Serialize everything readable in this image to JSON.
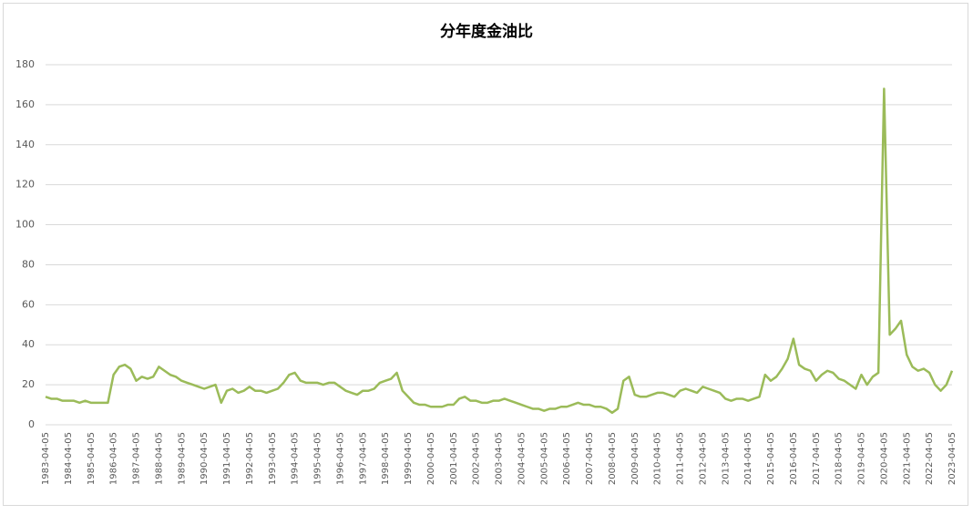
{
  "chart_data": {
    "type": "line",
    "title": "分年度金油比",
    "categories": [
      "1983-04-05",
      null,
      null,
      null,
      "1984-04-05",
      null,
      null,
      null,
      "1985-04-05",
      null,
      null,
      null,
      "1986-04-05",
      null,
      null,
      null,
      "1987-04-05",
      null,
      null,
      null,
      "1988-04-05",
      null,
      null,
      null,
      "1989-04-05",
      null,
      null,
      null,
      "1990-04-05",
      null,
      null,
      null,
      "1991-04-05",
      null,
      null,
      null,
      "1992-04-05",
      null,
      null,
      null,
      "1993-04-05",
      null,
      null,
      null,
      "1994-04-05",
      null,
      null,
      null,
      "1995-04-05",
      null,
      null,
      null,
      "1996-04-05",
      null,
      null,
      null,
      "1997-04-05",
      null,
      null,
      null,
      "1998-04-05",
      null,
      null,
      null,
      "1999-04-05",
      null,
      null,
      null,
      "2000-04-05",
      null,
      null,
      null,
      "2001-04-05",
      null,
      null,
      null,
      "2002-04-05",
      null,
      null,
      null,
      "2003-04-05",
      null,
      null,
      null,
      "2004-04-05",
      null,
      null,
      null,
      "2005-04-05",
      null,
      null,
      null,
      "2006-04-05",
      null,
      null,
      null,
      "2007-04-05",
      null,
      null,
      null,
      "2008-04-05",
      null,
      null,
      null,
      "2009-04-05",
      null,
      null,
      null,
      "2010-04-05",
      null,
      null,
      null,
      "2011-04-05",
      null,
      null,
      null,
      "2012-04-05",
      null,
      null,
      null,
      "2013-04-05",
      null,
      null,
      null,
      "2014-04-05",
      null,
      null,
      null,
      "2015-04-05",
      null,
      null,
      null,
      "2016-04-05",
      null,
      null,
      null,
      "2017-04-05",
      null,
      null,
      null,
      "2018-04-05",
      null,
      null,
      null,
      "2019-04-05",
      null,
      null,
      null,
      "2020-04-05",
      null,
      null,
      null,
      "2021-04-05",
      null,
      null,
      null,
      "2022-04-05",
      null,
      null,
      null,
      "2023-04-05"
    ],
    "values": [
      14,
      13,
      13,
      12,
      12,
      12,
      11,
      12,
      11,
      11,
      11,
      11,
      25,
      29,
      30,
      28,
      22,
      24,
      23,
      24,
      29,
      27,
      25,
      24,
      22,
      21,
      20,
      19,
      18,
      19,
      20,
      11,
      17,
      18,
      16,
      17,
      19,
      17,
      17,
      16,
      17,
      18,
      21,
      25,
      26,
      22,
      21,
      21,
      21,
      20,
      21,
      21,
      19,
      17,
      16,
      15,
      17,
      17,
      18,
      21,
      22,
      23,
      26,
      17,
      14,
      11,
      10,
      10,
      9,
      9,
      9,
      10,
      10,
      13,
      14,
      12,
      12,
      11,
      11,
      12,
      12,
      13,
      12,
      11,
      10,
      9,
      8,
      8,
      7,
      8,
      8,
      9,
      9,
      10,
      11,
      10,
      10,
      9,
      9,
      8,
      6,
      8,
      22,
      24,
      15,
      14,
      14,
      15,
      16,
      16,
      15,
      14,
      17,
      18,
      17,
      16,
      19,
      18,
      17,
      16,
      13,
      12,
      13,
      13,
      12,
      13,
      14,
      25,
      22,
      24,
      28,
      33,
      43,
      30,
      28,
      27,
      22,
      25,
      27,
      26,
      23,
      22,
      20,
      18,
      25,
      20,
      24,
      26,
      168,
      45,
      48,
      52,
      35,
      29,
      27,
      28,
      26,
      20,
      17,
      20,
      27
    ],
    "color": "#9bbb59",
    "ylim": [
      0,
      180
    ],
    "yticks": [
      0,
      20,
      40,
      60,
      80,
      100,
      120,
      140,
      160,
      180
    ],
    "grid": true
  }
}
